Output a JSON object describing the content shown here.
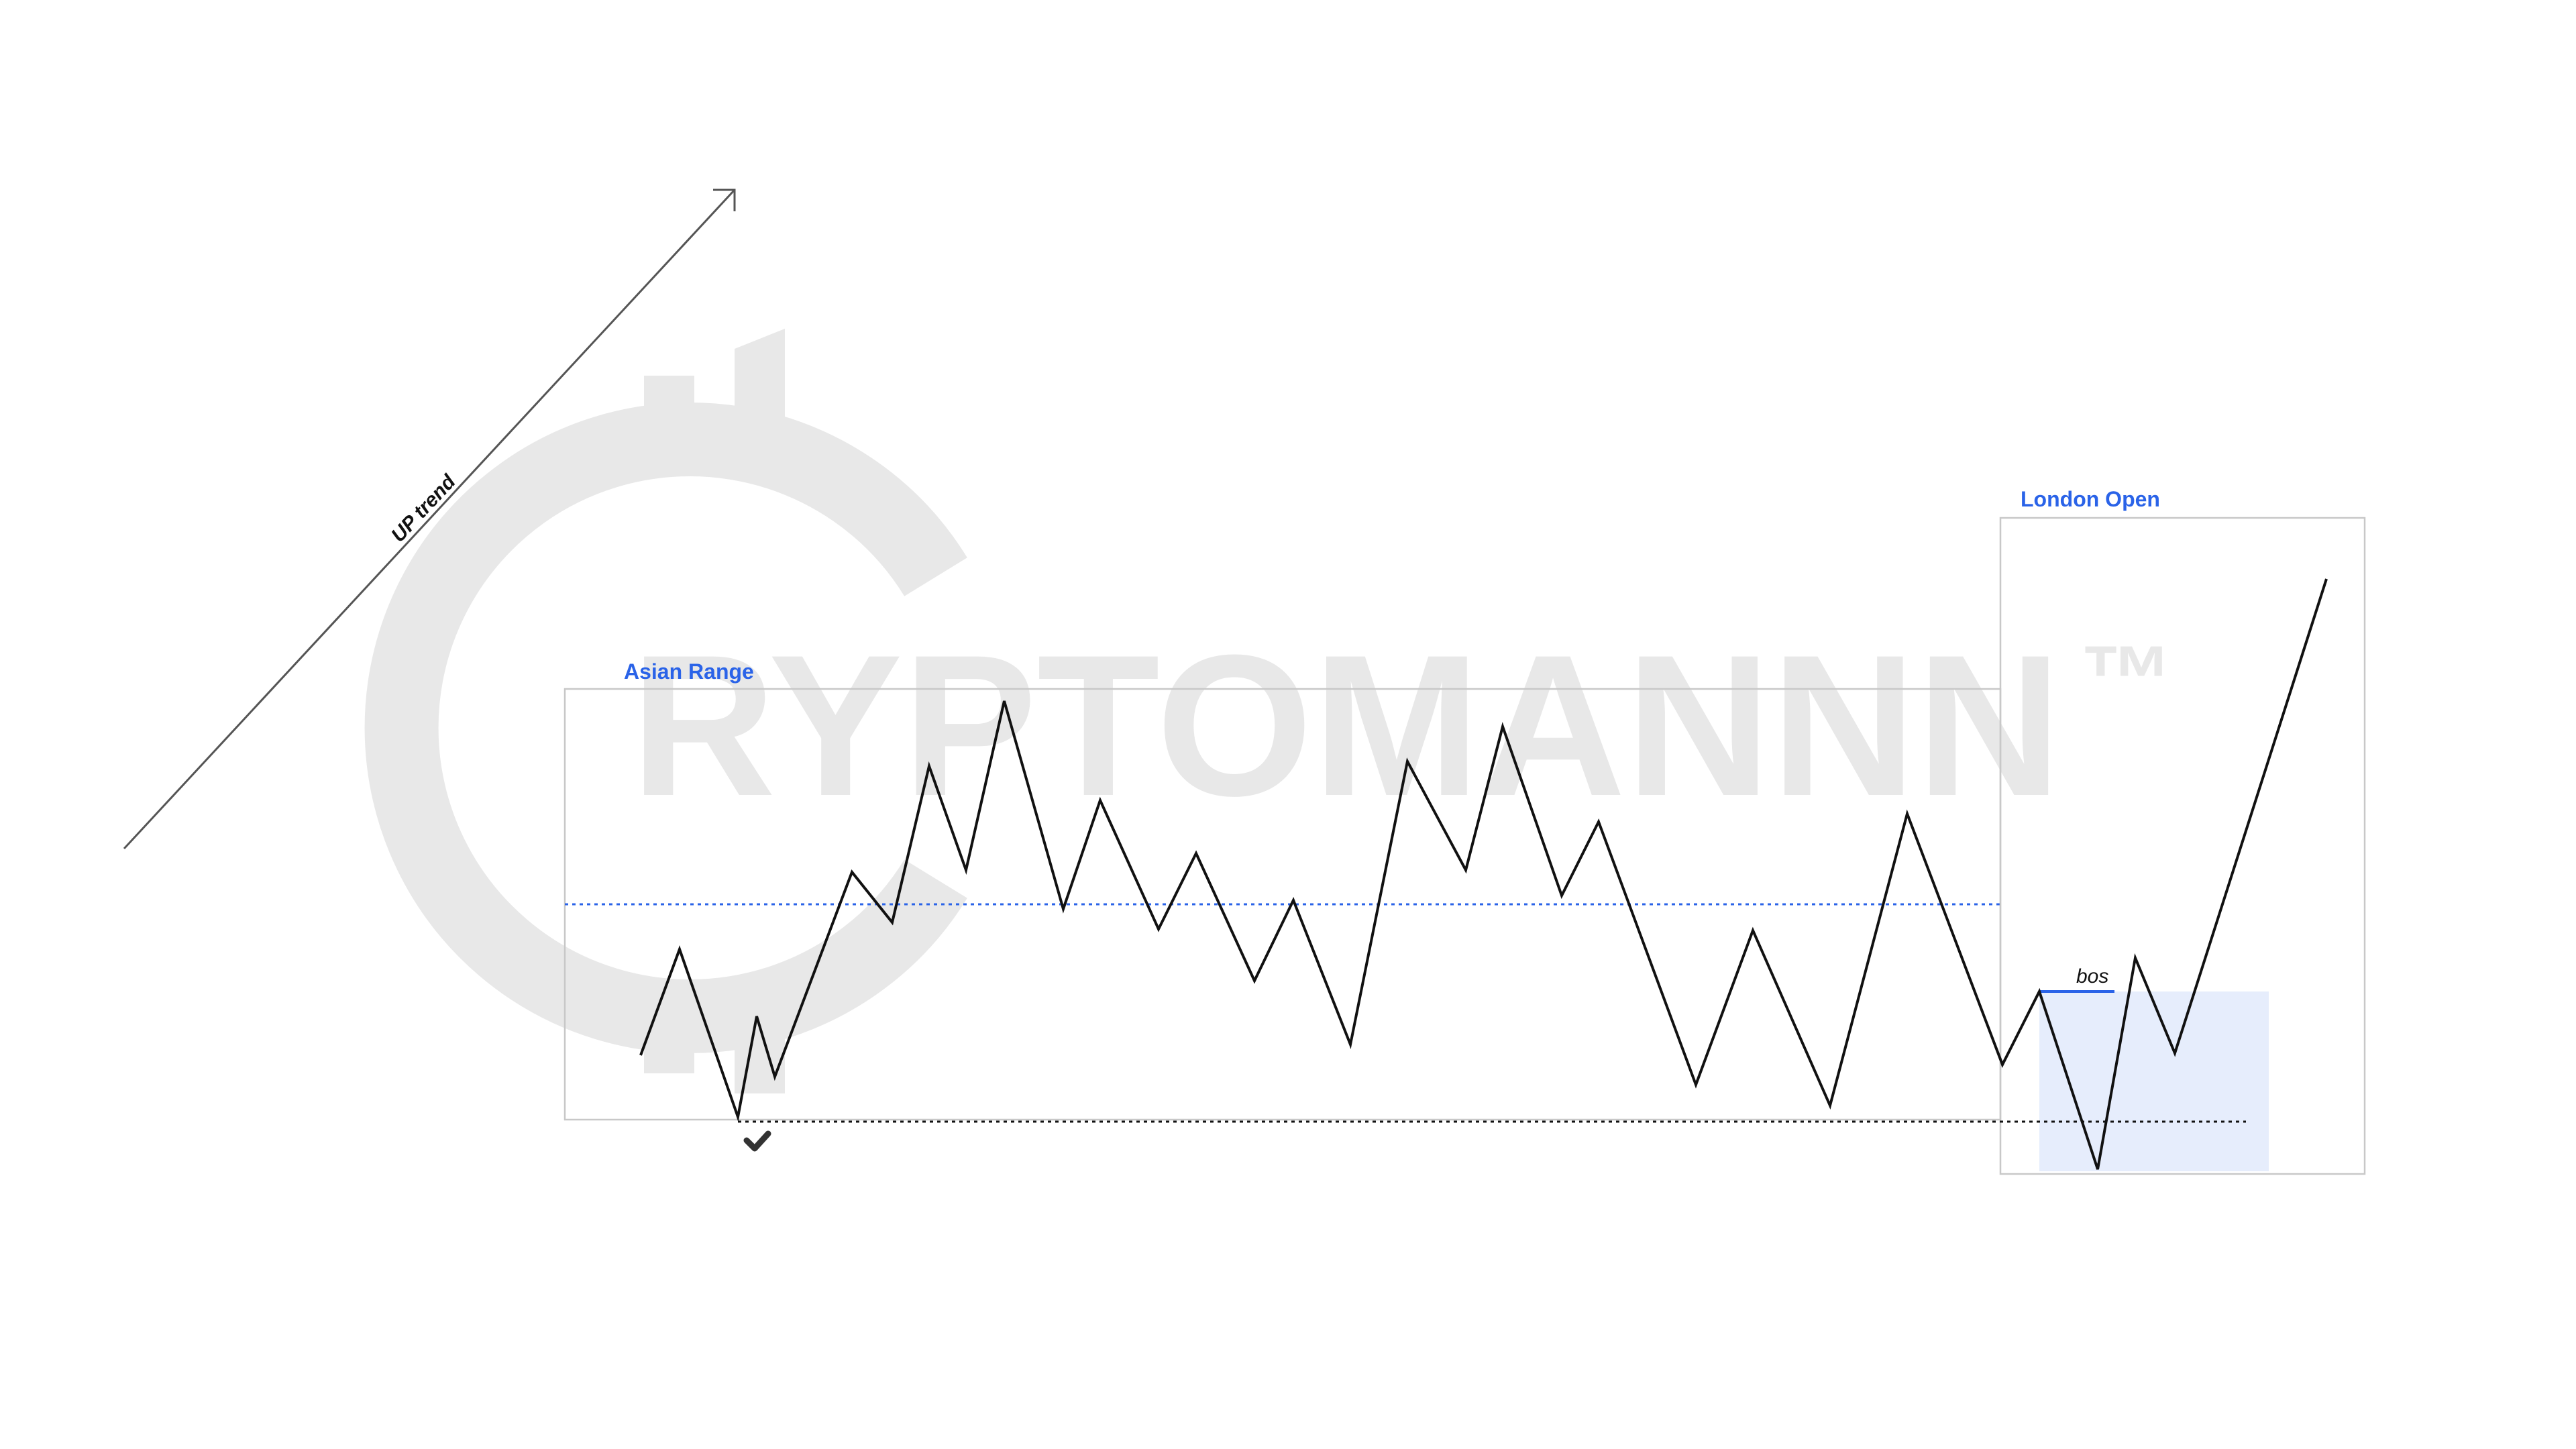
{
  "watermark": {
    "text": "RYPTOMANNN",
    "tm": "™",
    "color": "#e8e8e8"
  },
  "labels": {
    "uptrend": "UP trend",
    "asian_range": "Asian Range",
    "london_open": "London Open",
    "bos": "bos"
  },
  "colors": {
    "accent_blue": "#2a63e8",
    "zone_fill": "#e6edfc",
    "line": "#111111",
    "box_border": "#c8c8c8"
  },
  "icons": {
    "sweep_marker": "check-icon"
  }
}
